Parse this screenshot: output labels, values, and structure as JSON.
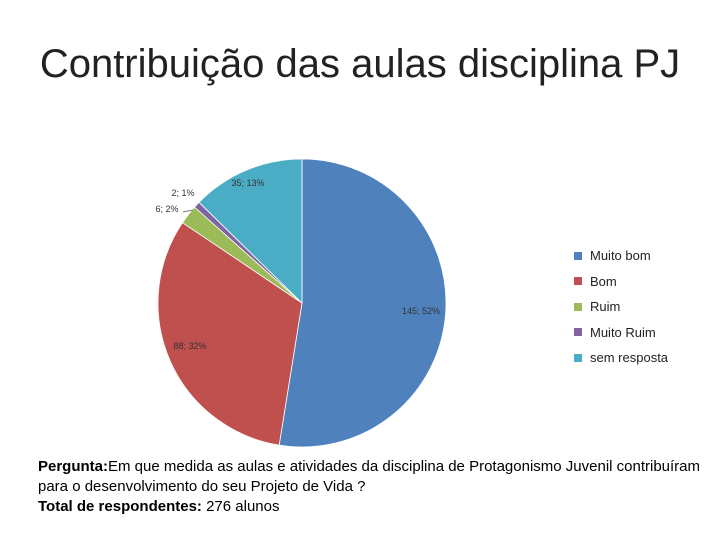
{
  "title": "Contribuição das aulas disciplina PJ",
  "chart_data": {
    "type": "pie",
    "title": "Contribuição das aulas disciplina PJ",
    "slices": [
      {
        "name": "Muito bom",
        "value": 145,
        "percent": "52%",
        "label": "145; 52%",
        "color": "#4F81BD"
      },
      {
        "name": "Bom",
        "value": 88,
        "percent": "32%",
        "label": "88; 32%",
        "color": "#C0504D"
      },
      {
        "name": "Ruim",
        "value": 6,
        "percent": "2%",
        "label": "6; 2%",
        "color": "#9BBB59"
      },
      {
        "name": "Muito Ruim",
        "value": 2,
        "percent": "1%",
        "label": "2; 1%",
        "color": "#8064A2"
      },
      {
        "name": "sem resposta",
        "value": 35,
        "percent": "13%",
        "label": "35; 13%",
        "color": "#4BACC6"
      }
    ],
    "legend_position": "right"
  },
  "note": {
    "question_label": "Pergunta:",
    "question_text": "Em que medida as aulas e atividades da disciplina de Protagonismo Juvenil contribuíram para o desenvolvimento do seu Projeto de Vida ?",
    "total_label": "Total de respondentes:",
    "total_text": " 276 alunos"
  }
}
